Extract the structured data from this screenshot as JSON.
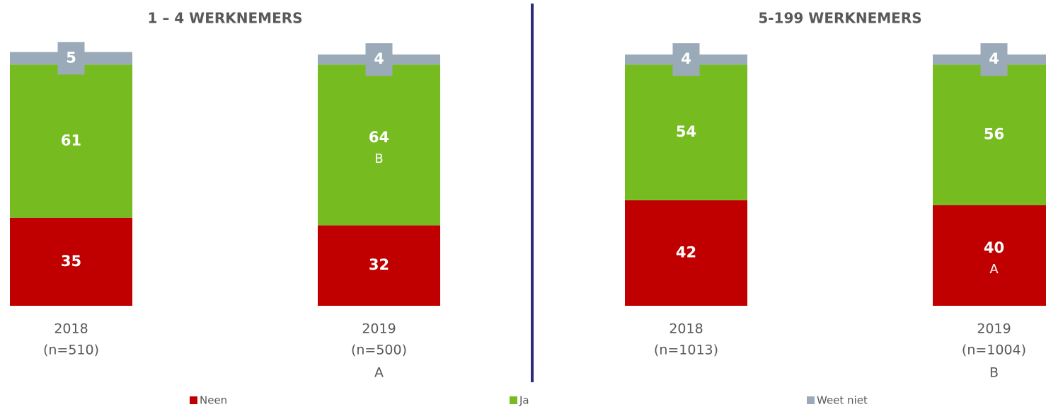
{
  "chart_data": [
    {
      "type": "stacked_bar",
      "title": "1 – 4 WERKNEMERS",
      "categories": [
        "2018",
        "2019"
      ],
      "sample_sizes": [
        "(n=510)",
        "(n=500)"
      ],
      "category_notes": [
        null,
        "A"
      ],
      "series": [
        {
          "name": "Neen",
          "color": "#c00000",
          "values": [
            35,
            32
          ],
          "significance": [
            null,
            null
          ]
        },
        {
          "name": "Ja",
          "color": "#76bc21",
          "values": [
            61,
            64
          ],
          "significance": [
            null,
            "B"
          ]
        },
        {
          "name": "Weet niet",
          "color": "#9aaab8",
          "values": [
            5,
            4
          ],
          "significance": [
            null,
            null
          ]
        }
      ]
    },
    {
      "type": "stacked_bar",
      "title": "5-199 WERKNEMERS",
      "categories": [
        "2018",
        "2019"
      ],
      "sample_sizes": [
        "(n=1013)",
        "(n=1004)"
      ],
      "category_notes": [
        null,
        "B"
      ],
      "series": [
        {
          "name": "Neen",
          "color": "#c00000",
          "values": [
            42,
            40
          ],
          "significance": [
            null,
            "A"
          ]
        },
        {
          "name": "Ja",
          "color": "#76bc21",
          "values": [
            54,
            56
          ],
          "significance": [
            null,
            null
          ]
        },
        {
          "name": "Weet niet",
          "color": "#9aaab8",
          "values": [
            4,
            4
          ],
          "significance": [
            null,
            null
          ]
        }
      ]
    }
  ]
}
